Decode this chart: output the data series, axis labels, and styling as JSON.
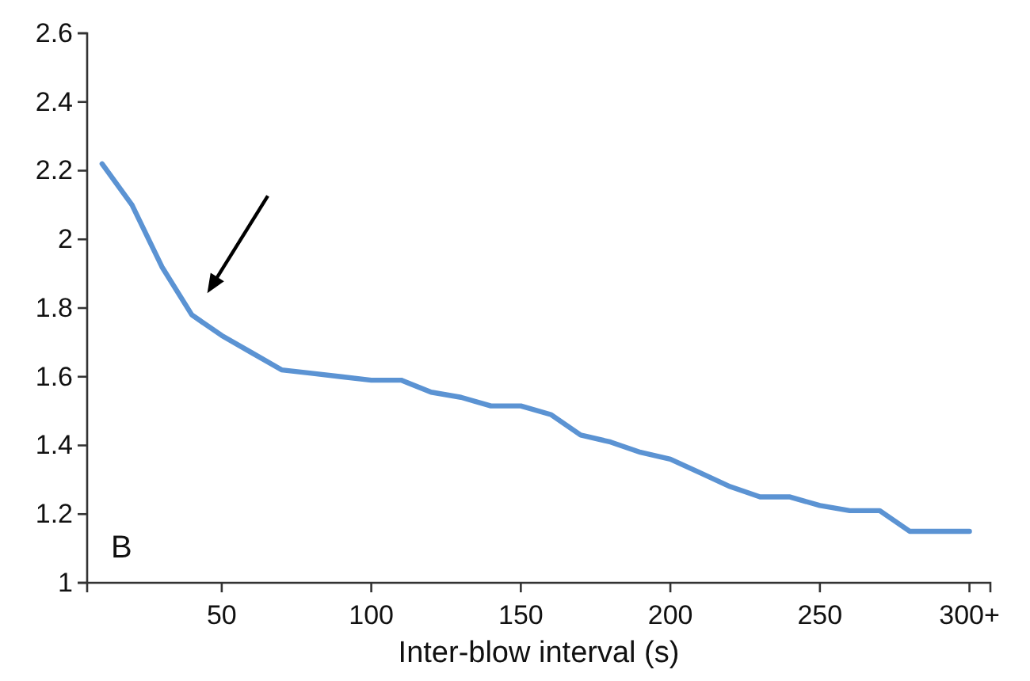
{
  "chart_data": {
    "type": "line",
    "xlabel": "Inter-blow interval (s)",
    "annotations": [
      "B"
    ],
    "x": [
      10,
      20,
      30,
      40,
      50,
      60,
      70,
      80,
      90,
      100,
      110,
      120,
      130,
      140,
      150,
      160,
      170,
      180,
      190,
      200,
      210,
      220,
      230,
      240,
      250,
      260,
      270,
      280,
      290,
      300
    ],
    "series": [
      {
        "color": "#5b93d3",
        "values": [
          2.22,
          2.1,
          1.92,
          1.78,
          1.72,
          1.67,
          1.62,
          1.61,
          1.6,
          1.59,
          1.59,
          1.555,
          1.54,
          1.515,
          1.515,
          1.49,
          1.43,
          1.41,
          1.38,
          1.36,
          1.32,
          1.28,
          1.25,
          1.25,
          1.225,
          1.21,
          1.21,
          1.15,
          1.15,
          1.15
        ]
      }
    ],
    "xlim": [
      5,
      307
    ],
    "xticks": [
      50,
      100,
      150,
      200,
      250,
      {
        "value": 300,
        "label": "300+"
      }
    ],
    "ylim": [
      1,
      2.6
    ],
    "yticks": [
      1,
      1.2,
      1.4,
      1.6,
      1.8,
      2,
      2.2,
      2.4,
      2.6
    ],
    "marker": "none",
    "line_style": "solid"
  }
}
